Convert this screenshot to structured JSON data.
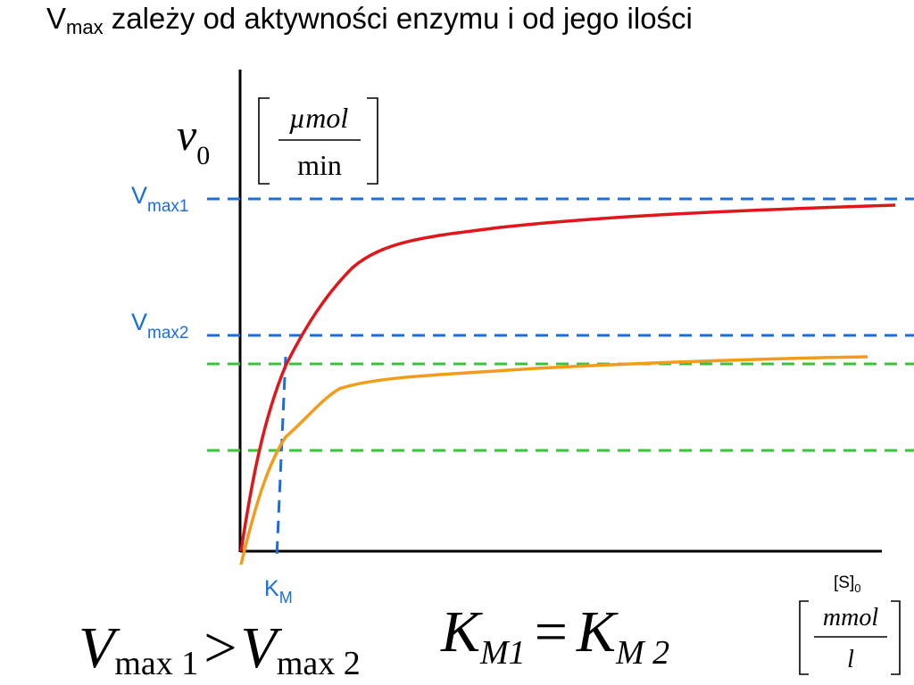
{
  "title": {
    "main": "V",
    "sub": "max",
    "rest": " zależy od aktywności enzymu i od jego ilości"
  },
  "y_axis": {
    "symbol": "v",
    "symbol_sub": "0",
    "unit_num": "µmol",
    "unit_den": "min"
  },
  "x_axis": {
    "symbol": "[S]",
    "symbol_sub": "0",
    "unit_num": "mmol",
    "unit_den": "l"
  },
  "labels": {
    "vmax1": {
      "main": "V",
      "sub": "max1"
    },
    "vmax2": {
      "main": "V",
      "sub": "max2"
    },
    "km": {
      "main": "K",
      "sub": "M"
    }
  },
  "equations": {
    "left": {
      "a": "V",
      "a_sub": "max 1",
      "op": ">",
      "b": "V",
      "b_sub": "max 2"
    },
    "right": {
      "a": "K",
      "a_sub": "M1",
      "op": "=",
      "b": "K",
      "b_sub": "M 2"
    }
  },
  "colors": {
    "curve1": "#e0161b",
    "curve2": "#f39c1b",
    "vmax_lines": "#1a6ee0",
    "half_lines": "#3cc23c",
    "axis": "#000000"
  }
}
